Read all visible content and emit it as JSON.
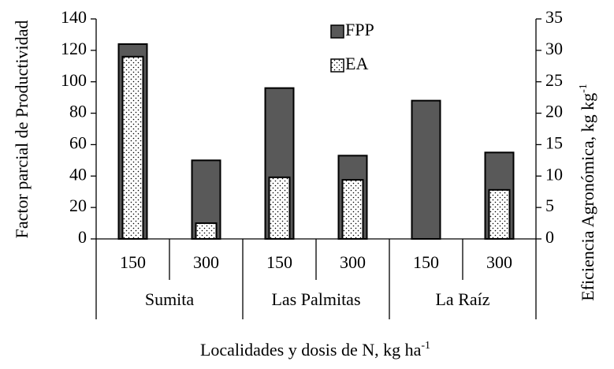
{
  "chart_data": {
    "type": "bar",
    "categories": [
      "150",
      "300",
      "150",
      "300",
      "150",
      "300"
    ],
    "groups": [
      "Sumita",
      "Las Palmitas",
      "La Raíz"
    ],
    "series": [
      {
        "name": "FPP",
        "color": "#595959",
        "values": [
          124,
          50,
          96,
          53,
          88,
          55
        ]
      },
      {
        "name": "EA",
        "color": "#ffffff",
        "axis": "y2",
        "values": [
          29,
          2.5,
          9.8,
          9.4,
          0,
          7.8
        ]
      }
    ],
    "ylabel": "Factor parcial de Productividad",
    "y2label": "Eficiencia Agronómica, kg kg",
    "y2label_sup": "-1",
    "xlabel": "Localidades y dosis de N, kg ha",
    "xlabel_sup": "-1",
    "ylim": [
      0,
      140
    ],
    "yticks": [
      0,
      20,
      40,
      60,
      80,
      100,
      120,
      140
    ],
    "y2lim": [
      0,
      35
    ],
    "y2ticks": [
      0,
      5,
      10,
      15,
      20,
      25,
      30,
      35
    ],
    "legend": "top"
  }
}
